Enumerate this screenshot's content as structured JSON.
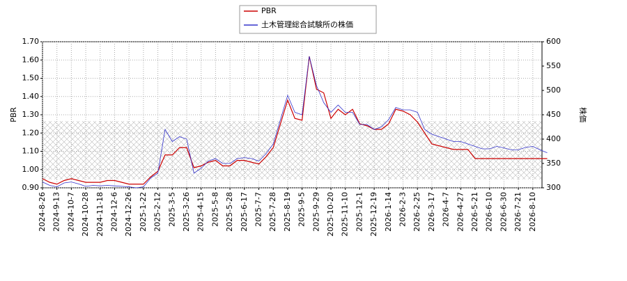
{
  "chart_data": {
    "type": "line",
    "categories": [
      "2024-8-26",
      null,
      "2024-9-13",
      null,
      "2024-10-7",
      null,
      "2024-10-28",
      null,
      "2024-11-18",
      null,
      "2024-12-6",
      null,
      "2024-12-26",
      null,
      "2025-1-22",
      null,
      "2025-2-12",
      null,
      "2025-3-5",
      null,
      "2025-3-26",
      null,
      "2025-4-15",
      null,
      "2025-5-8",
      null,
      "2025-5-28",
      null,
      "2025-6-17",
      null,
      "2025-7-7",
      null,
      "2025-7-28",
      null,
      "2025-8-19",
      null,
      "2025-9-5",
      null,
      "2025-9-29",
      null,
      "2025-10-20",
      null,
      "2025-11-10",
      null,
      "2025-12-1",
      null,
      "2025-12-19",
      null,
      "2026-1-14",
      null,
      "2026-2-3",
      null,
      "2026-2-25",
      null,
      "2026-3-17",
      null,
      "2026-4-7",
      null,
      "2026-4-27",
      null,
      "2026-5-21",
      null,
      "2026-6-10",
      null,
      "2026-6-30",
      null,
      "2026-7-21",
      null,
      "2026-8-10",
      null,
      null
    ],
    "series": [
      {
        "name": "PBR",
        "color": "#cc0000",
        "values": [
          0.95,
          0.93,
          0.92,
          0.94,
          0.95,
          0.94,
          0.93,
          0.93,
          0.93,
          0.94,
          0.94,
          0.93,
          0.92,
          0.92,
          0.92,
          0.96,
          0.99,
          1.08,
          1.08,
          1.12,
          1.12,
          1.01,
          1.02,
          1.04,
          1.05,
          1.02,
          1.02,
          1.05,
          1.05,
          1.04,
          1.03,
          1.07,
          1.12,
          1.25,
          1.38,
          1.28,
          1.27,
          1.62,
          1.44,
          1.42,
          1.28,
          1.33,
          1.3,
          1.33,
          1.25,
          1.24,
          1.22,
          1.22,
          1.25,
          1.33,
          1.32,
          1.3,
          1.26,
          1.2,
          1.14,
          1.13,
          1.12,
          1.11,
          1.11,
          1.11,
          1.06,
          1.06,
          1.06,
          1.06,
          1.06,
          1.06,
          1.06,
          1.06,
          1.06,
          1.06,
          1.06
        ]
      },
      {
        "name": "土木管理総合試験所の株価",
        "color": "#3333cc",
        "axis": "y2",
        "values": [
          312,
          305,
          302,
          310,
          312,
          308,
          303,
          305,
          304,
          305,
          304,
          303,
          302,
          300,
          302,
          320,
          330,
          420,
          395,
          405,
          400,
          330,
          340,
          355,
          360,
          350,
          350,
          360,
          362,
          360,
          355,
          370,
          390,
          440,
          490,
          455,
          450,
          570,
          510,
          475,
          455,
          470,
          455,
          455,
          430,
          430,
          420,
          425,
          440,
          465,
          460,
          460,
          455,
          420,
          410,
          405,
          400,
          395,
          395,
          390,
          385,
          380,
          380,
          385,
          382,
          378,
          378,
          383,
          385,
          378,
          372
        ]
      }
    ],
    "ylabel": "PBR",
    "y2label": "株価",
    "ylim": [
      0.9,
      1.7
    ],
    "yticks": [
      {
        "value": 0.9,
        "label": "0.90"
      },
      {
        "value": 1.0,
        "label": "1.00"
      },
      {
        "value": 1.1,
        "label": "1.10"
      },
      {
        "value": 1.2,
        "label": "1.20"
      },
      {
        "value": 1.3,
        "label": "1.30"
      },
      {
        "value": 1.4,
        "label": "1.40"
      },
      {
        "value": 1.5,
        "label": "1.50"
      },
      {
        "value": 1.6,
        "label": "1.60"
      },
      {
        "value": 1.7,
        "label": "1.70"
      }
    ],
    "y2lim": [
      300,
      600
    ],
    "y2ticks": [
      300,
      350,
      400,
      450,
      500,
      550,
      600
    ],
    "grid": true
  }
}
